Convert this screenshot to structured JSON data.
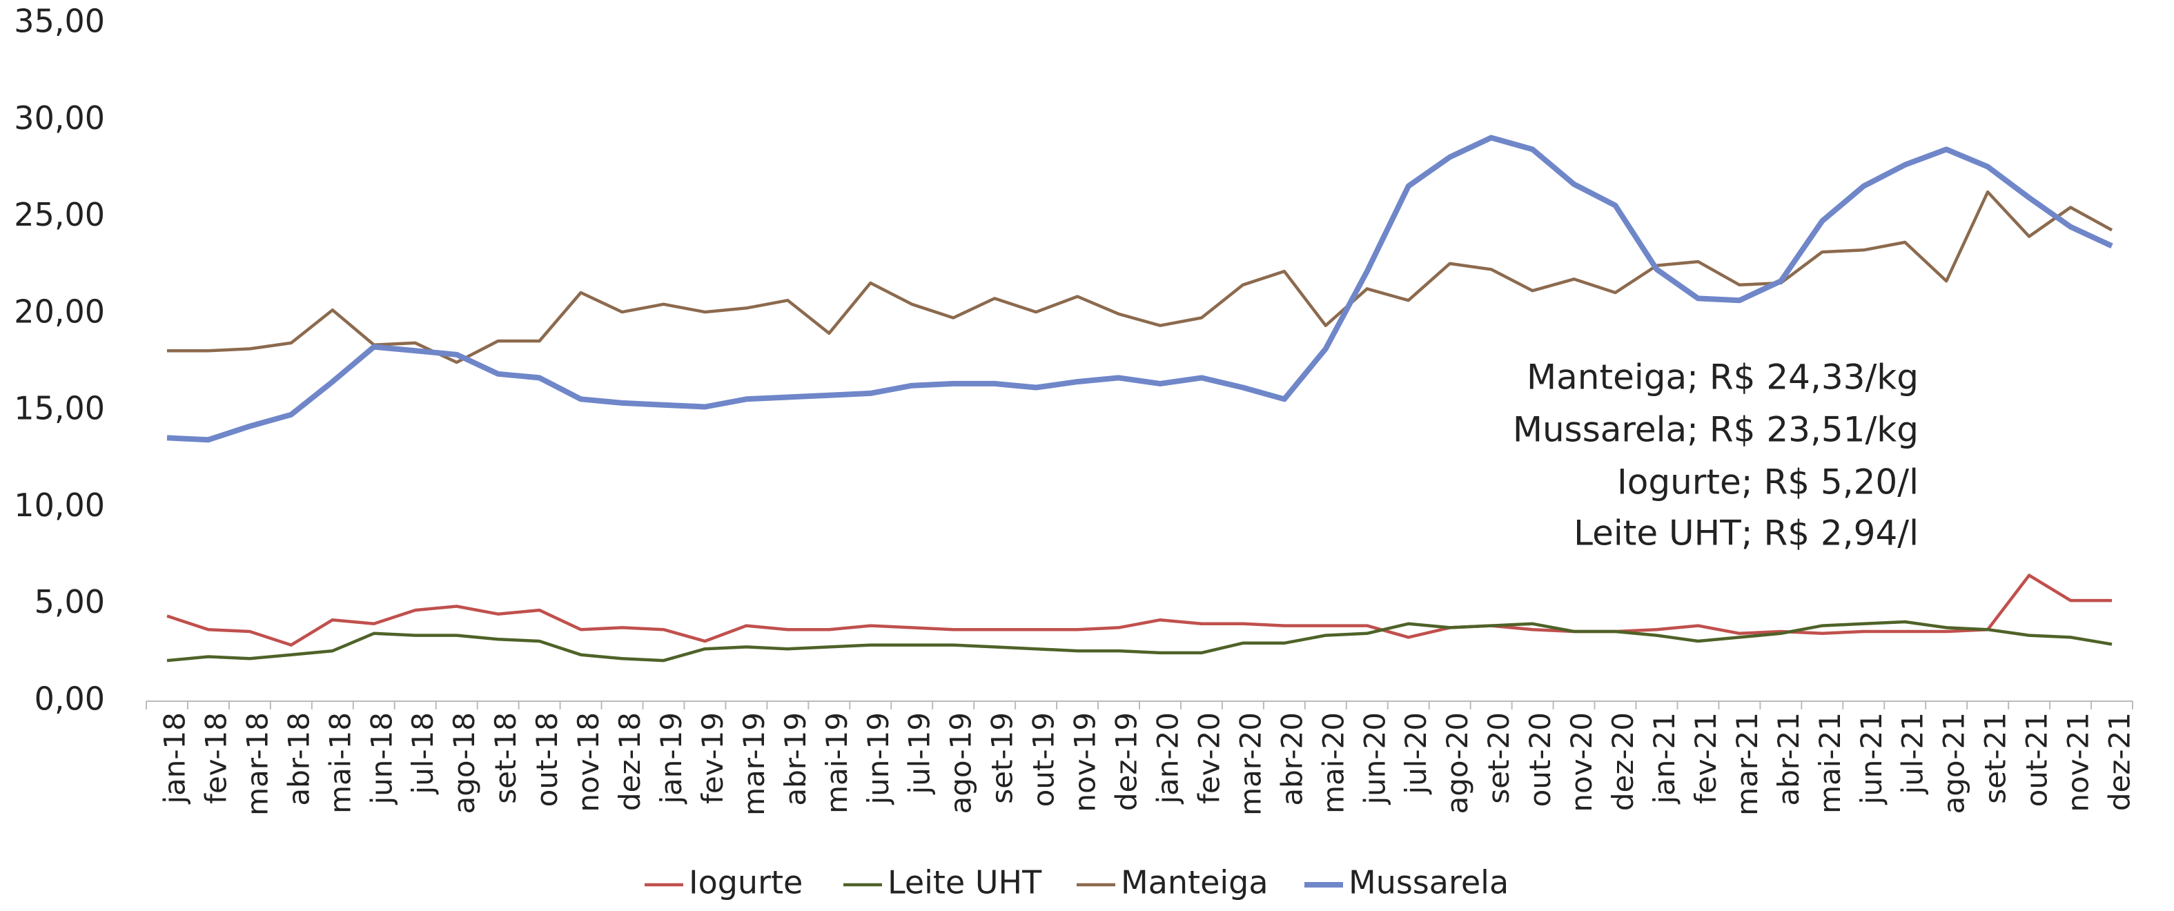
{
  "chart_data": {
    "type": "line",
    "categories": [
      "jan-18",
      "fev-18",
      "mar-18",
      "abr-18",
      "mai-18",
      "jun-18",
      "jul-18",
      "ago-18",
      "set-18",
      "out-18",
      "nov-18",
      "dez-18",
      "jan-19",
      "fev-19",
      "mar-19",
      "abr-19",
      "mai-19",
      "jun-19",
      "jul-19",
      "ago-19",
      "set-19",
      "out-19",
      "nov-19",
      "dez-19",
      "jan-20",
      "fev-20",
      "mar-20",
      "abr-20",
      "mai-20",
      "jun-20",
      "jul-20",
      "ago-20",
      "set-20",
      "out-20",
      "nov-20",
      "dez-20",
      "jan-21",
      "fev-21",
      "mar-21",
      "abr-21",
      "mai-21",
      "jun-21",
      "jul-21",
      "ago-21",
      "set-21",
      "out-21",
      "nov-21",
      "dez-21"
    ],
    "series": [
      {
        "name": "Iogurte",
        "color": "#c0504d",
        "values": [
          4.4,
          3.7,
          3.6,
          2.9,
          4.2,
          4.0,
          4.7,
          4.9,
          4.5,
          4.7,
          3.7,
          3.8,
          3.7,
          3.1,
          3.9,
          3.7,
          3.7,
          3.9,
          3.8,
          3.7,
          3.7,
          3.7,
          3.7,
          3.8,
          4.2,
          4.0,
          4.0,
          3.9,
          3.9,
          3.9,
          3.3,
          3.8,
          3.9,
          3.7,
          3.6,
          3.6,
          3.7,
          3.9,
          3.5,
          3.6,
          3.5,
          3.6,
          3.6,
          3.6,
          3.7,
          6.5,
          5.2,
          5.2
        ]
      },
      {
        "name": "Leite UHT",
        "color": "#4f6228",
        "values": [
          2.1,
          2.3,
          2.2,
          2.4,
          2.6,
          3.5,
          3.4,
          3.4,
          3.2,
          3.1,
          2.4,
          2.2,
          2.1,
          2.7,
          2.8,
          2.7,
          2.8,
          2.9,
          2.9,
          2.9,
          2.8,
          2.7,
          2.6,
          2.6,
          2.5,
          2.5,
          3.0,
          3.0,
          3.4,
          3.5,
          4.0,
          3.8,
          3.9,
          4.0,
          3.6,
          3.6,
          3.4,
          3.1,
          3.3,
          3.5,
          3.9,
          4.0,
          4.1,
          3.8,
          3.7,
          3.4,
          3.3,
          2.94
        ]
      },
      {
        "name": "Manteiga",
        "color": "#8c6a4e",
        "values": [
          18.1,
          18.1,
          18.2,
          18.5,
          20.2,
          18.4,
          18.5,
          17.5,
          18.6,
          18.6,
          21.1,
          20.1,
          20.5,
          20.1,
          20.3,
          20.7,
          19.0,
          21.6,
          20.5,
          19.8,
          20.8,
          20.1,
          20.9,
          20.0,
          19.4,
          19.8,
          21.5,
          22.2,
          19.4,
          21.3,
          20.7,
          22.6,
          22.3,
          21.2,
          21.8,
          21.1,
          22.5,
          22.7,
          21.5,
          21.6,
          23.2,
          23.3,
          23.7,
          21.7,
          26.3,
          24.0,
          25.5,
          24.33
        ]
      },
      {
        "name": "Mussarela",
        "color": "#6f86c9",
        "values": [
          13.6,
          13.5,
          14.2,
          14.8,
          16.5,
          18.3,
          18.1,
          17.9,
          16.9,
          16.7,
          15.6,
          15.4,
          15.3,
          15.2,
          15.6,
          15.7,
          15.8,
          15.9,
          16.3,
          16.4,
          16.4,
          16.2,
          16.5,
          16.7,
          16.4,
          16.7,
          16.2,
          15.6,
          18.2,
          22.2,
          26.6,
          28.1,
          29.1,
          28.5,
          26.7,
          25.6,
          22.3,
          20.8,
          20.7,
          21.7,
          24.8,
          26.6,
          27.7,
          28.5,
          27.6,
          26.0,
          24.5,
          23.51
        ]
      }
    ],
    "ylim": [
      0,
      35
    ],
    "yticks": [
      {
        "value": 0,
        "label": "0,00"
      },
      {
        "value": 5,
        "label": "5,00"
      },
      {
        "value": 10,
        "label": "10,00"
      },
      {
        "value": 15,
        "label": "15,00"
      },
      {
        "value": 20,
        "label": "20,00"
      },
      {
        "value": 25,
        "label": "25,00"
      },
      {
        "value": 30,
        "label": "30,00"
      },
      {
        "value": 35,
        "label": "35,00"
      }
    ],
    "annotations": [
      "Manteiga; R$ 24,33/kg",
      "Mussarela; R$ 23,51/kg",
      "Iogurte; R$ 5,20/l",
      "Leite UHT; R$ 2,94/l"
    ],
    "legend": "bottom",
    "grid": false
  }
}
